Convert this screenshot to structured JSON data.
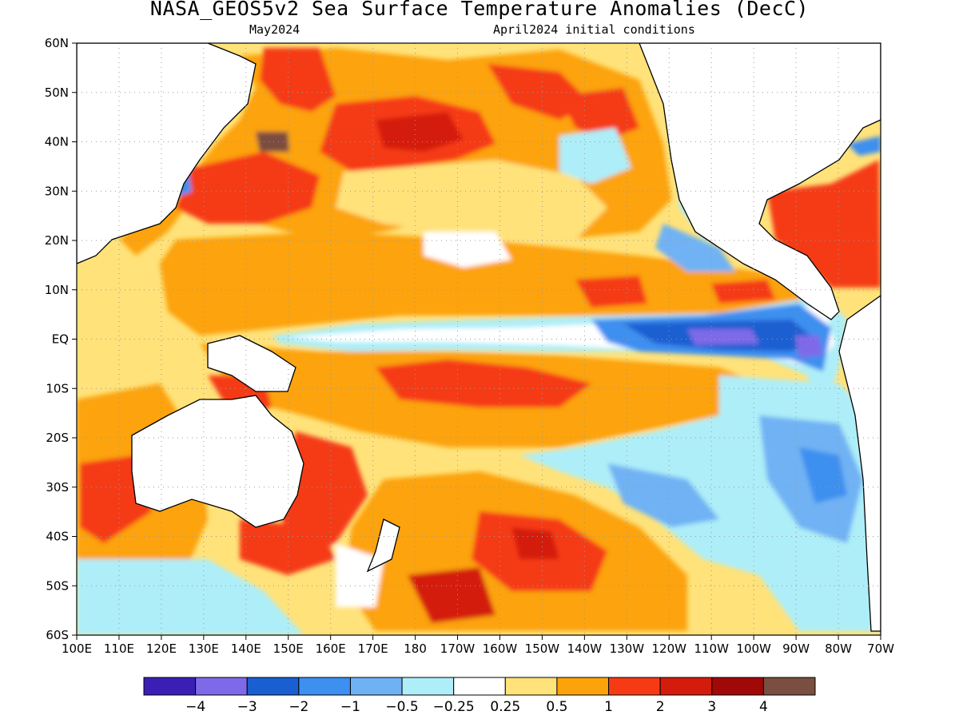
{
  "title": "NASA_GEOS5v2 Sea Surface Temperature Anomalies (DecC)",
  "subtitle_left": "May2024",
  "subtitle_right": "April2024 initial conditions",
  "axes": {
    "lat_labels": [
      "60N",
      "50N",
      "40N",
      "30N",
      "20N",
      "10N",
      "EQ",
      "10S",
      "20S",
      "30S",
      "40S",
      "50S",
      "60S"
    ],
    "lon_labels": [
      "100E",
      "110E",
      "120E",
      "130E",
      "140E",
      "150E",
      "160E",
      "170E",
      "180",
      "170W",
      "160W",
      "150W",
      "140W",
      "130W",
      "120W",
      "110W",
      "100W",
      "90W",
      "80W",
      "70W"
    ],
    "lat_range": [
      -60,
      60
    ],
    "lon_range": [
      100,
      290
    ],
    "grid": "dotted"
  },
  "colorbar": {
    "colors": [
      "#3b1fb5",
      "#7e6ae8",
      "#1a5fd1",
      "#3d8ff0",
      "#6fb2f4",
      "#aeeef8",
      "#ffffff",
      "#ffe27a",
      "#fca30a",
      "#f53a14",
      "#d41c0c",
      "#a10808",
      "#7a4e40"
    ],
    "labels": [
      "−4",
      "−3",
      "−2",
      "−1",
      "−0.5",
      "−0.25",
      "0.25",
      "0.5",
      "1",
      "2",
      "3",
      "4"
    ]
  }
}
